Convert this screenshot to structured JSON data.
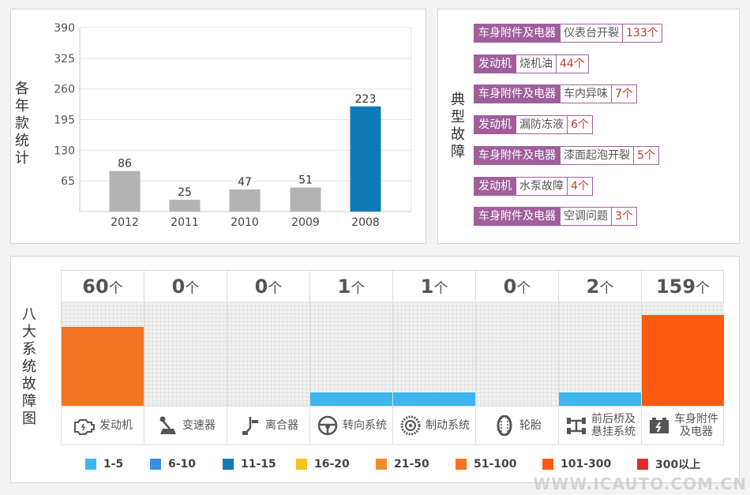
{
  "year_panel": {
    "side_label": "各年款统计"
  },
  "fault_panel": {
    "side_label": "典型故障",
    "items": [
      {
        "system": "车身附件及电器",
        "fault": "仪表台开裂",
        "count": "133个"
      },
      {
        "system": "发动机",
        "fault": "烧机油",
        "count": "44个"
      },
      {
        "system": "车身附件及电器",
        "fault": "车内异味",
        "count": "7个"
      },
      {
        "system": "发动机",
        "fault": "漏防冻液",
        "count": "6个"
      },
      {
        "system": "车身附件及电器",
        "fault": "漆面起泡开裂",
        "count": "5个"
      },
      {
        "system": "发动机",
        "fault": "水泵故障",
        "count": "4个"
      },
      {
        "system": "车身附件及电器",
        "fault": "空调问题",
        "count": "3个"
      }
    ]
  },
  "system_panel": {
    "side_label": "八大系统故障图",
    "unit": "个",
    "columns": [
      {
        "name": "发动机",
        "count": "60",
        "icon": "engine-icon",
        "color": "#f37423",
        "level": 0.76
      },
      {
        "name": "变速器",
        "count": "0",
        "icon": "gear-shifter-icon",
        "color": "#cccccc",
        "level": 0
      },
      {
        "name": "离合器",
        "count": "0",
        "icon": "clutch-pedal-icon",
        "color": "#cccccc",
        "level": 0
      },
      {
        "name": "转向系统",
        "count": "1",
        "icon": "steering-wheel-icon",
        "color": "#3cb6f0",
        "level": 0.13
      },
      {
        "name": "制动系统",
        "count": "1",
        "icon": "brake-disc-icon",
        "color": "#3cb6f0",
        "level": 0.13
      },
      {
        "name": "轮胎",
        "count": "0",
        "icon": "tire-icon",
        "color": "#cccccc",
        "level": 0
      },
      {
        "name": "前后桥及悬挂系统",
        "label_lines": [
          "前后桥及",
          "悬挂系统"
        ],
        "count": "2",
        "icon": "axle-suspension-icon",
        "color": "#3cb6f0",
        "level": 0.13
      },
      {
        "name": "车身附件及电器",
        "label_lines": [
          "车身附件",
          "及电器"
        ],
        "count": "159",
        "icon": "battery-icon",
        "color": "#fd5a11",
        "level": 0.87
      }
    ]
  },
  "legend": [
    {
      "label": "1-5",
      "color": "#3cb6f0"
    },
    {
      "label": "6-10",
      "color": "#3a8ee6"
    },
    {
      "label": "11-15",
      "color": "#0f7ab8"
    },
    {
      "label": "16-20",
      "color": "#f6c21e"
    },
    {
      "label": "21-50",
      "color": "#f08a2a"
    },
    {
      "label": "51-100",
      "color": "#f37423"
    },
    {
      "label": "101-300",
      "color": "#fd5a11"
    },
    {
      "label": "300以上",
      "color": "#e42b2b"
    }
  ],
  "watermark": "WWW.ICAUTO.COM.CN",
  "chart_data": [
    {
      "type": "bar",
      "categories": [
        "2012",
        "2011",
        "2010",
        "2009",
        "2008"
      ],
      "values": [
        86,
        25,
        47,
        51,
        223
      ],
      "highlight_category": "2008",
      "colors": {
        "default": "#b3b3b3",
        "highlight": "#0f7ab8"
      },
      "yticks": [
        65,
        130,
        195,
        260,
        325,
        390
      ],
      "ylim": [
        0,
        390
      ],
      "grid": true
    },
    {
      "type": "bar",
      "categories": [
        "发动机",
        "变速器",
        "离合器",
        "转向系统",
        "制动系统",
        "轮胎",
        "前后桥及悬挂系统",
        "车身附件及电器"
      ],
      "values": [
        60,
        0,
        0,
        1,
        1,
        0,
        2,
        159
      ]
    }
  ]
}
